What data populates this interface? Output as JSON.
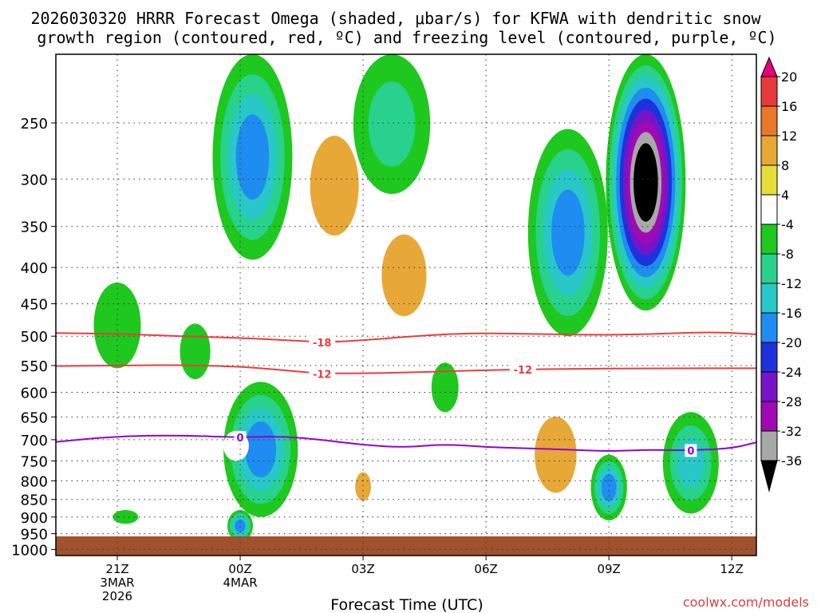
{
  "title_line1": "2026030320 HRRR Forecast Omega (shaded, μbar/s) for KFWA with dendritic snow",
  "title_line2": "growth region (contoured, red, ºC) and freezing level (contoured, purple, ºC)",
  "xlabel": "Forecast Time (UTC)",
  "credit": "coolwx.com/models",
  "colors": {
    "background": "#ffffff",
    "ground": "#a0522d",
    "dgz_line": "#ee3b3b",
    "freezing_line": "#9400d3",
    "grid": "#333333",
    "credit": "#e03c3c"
  },
  "chart_data": {
    "type": "contour",
    "title": "2026030320 HRRR Forecast Omega (shaded, μbar/s) for KFWA with dendritic snow growth region (contoured, red, ºC) and freezing level (contoured, purple, ºC)",
    "xlabel": "Forecast Time (UTC)",
    "ylabel": "",
    "x_range_hours": [
      -2.5,
      14.6
    ],
    "y_axis": "pressure_hPa",
    "y_range": [
      1020,
      200
    ],
    "y_ticks": [
      250,
      300,
      350,
      400,
      450,
      500,
      550,
      600,
      650,
      700,
      750,
      800,
      850,
      900,
      950,
      1000
    ],
    "x_ticks": [
      {
        "hour": -1,
        "lines": [
          "21Z",
          "3MAR",
          "2026"
        ]
      },
      {
        "hour": 2,
        "lines": [
          "00Z",
          "4MAR"
        ]
      },
      {
        "hour": 5,
        "lines": [
          "03Z"
        ]
      },
      {
        "hour": 8,
        "lines": [
          "06Z"
        ]
      },
      {
        "hour": 11,
        "lines": [
          "09Z"
        ]
      },
      {
        "hour": 14,
        "lines": [
          "12Z"
        ]
      }
    ],
    "colorbar": {
      "units": "μbar/s",
      "labels": [
        "20",
        "16",
        "12",
        "8",
        "4",
        "-4",
        "-8",
        "-12",
        "-16",
        "-20",
        "-24",
        "-28",
        "-32",
        "-36"
      ],
      "levels": [
        {
          "min": 20,
          "max": null,
          "color": "#e8007a"
        },
        {
          "min": 16,
          "max": 20,
          "color": "#e83a3a"
        },
        {
          "min": 12,
          "max": 16,
          "color": "#e8782a"
        },
        {
          "min": 8,
          "max": 12,
          "color": "#e8a838"
        },
        {
          "min": 4,
          "max": 8,
          "color": "#e8dc3a"
        },
        {
          "min": -4,
          "max": 4,
          "color": "#ffffff"
        },
        {
          "min": -8,
          "max": -4,
          "color": "#1ec81e"
        },
        {
          "min": -12,
          "max": -8,
          "color": "#28d28c"
        },
        {
          "min": -16,
          "max": -12,
          "color": "#28c8c8"
        },
        {
          "min": -20,
          "max": -16,
          "color": "#1e8cf0"
        },
        {
          "min": -24,
          "max": -20,
          "color": "#1e32dc"
        },
        {
          "min": -28,
          "max": -24,
          "color": "#7814c8"
        },
        {
          "min": -32,
          "max": -28,
          "color": "#a00ab4"
        },
        {
          "min": -36,
          "max": -32,
          "color": "#a8a8a8"
        },
        {
          "min": null,
          "max": -36,
          "color": "#000000"
        }
      ]
    },
    "omega_features": [
      {
        "hour": 0.2,
        "p_top": 255,
        "p_bot": 345,
        "levels": [
          4
        ]
      },
      {
        "hour": -1.0,
        "p_top": 420,
        "p_bot": 555,
        "levels": [
          -4
        ]
      },
      {
        "hour": 0.9,
        "p_top": 480,
        "p_bot": 575,
        "levels": [
          -4
        ]
      },
      {
        "hour": 2.3,
        "p_top": 200,
        "p_bot": 390,
        "levels": [
          -4,
          -8,
          -12,
          -16
        ]
      },
      {
        "hour": 2.5,
        "p_top": 430,
        "p_bot": 540,
        "levels": [
          4
        ]
      },
      {
        "hour": 4.3,
        "p_top": 235,
        "p_bot": 400,
        "levels": [
          4,
          8
        ]
      },
      {
        "hour": 5.7,
        "p_top": 200,
        "p_bot": 315,
        "levels": [
          -4,
          -8
        ]
      },
      {
        "hour": 6.0,
        "p_top": 330,
        "p_bot": 510,
        "levels": [
          4,
          8
        ]
      },
      {
        "hour": 8.2,
        "p_top": 260,
        "p_bot": 310,
        "levels": [
          4
        ]
      },
      {
        "hour": 10.0,
        "p_top": 255,
        "p_bot": 500,
        "levels": [
          -4,
          -8,
          -12,
          -16
        ]
      },
      {
        "hour": 11.9,
        "p_top": 200,
        "p_bot": 460,
        "levels": [
          -4,
          -8,
          -12,
          -16,
          -20,
          -24,
          -28,
          -32,
          -36
        ]
      },
      {
        "hour": 12.9,
        "p_top": 445,
        "p_bot": 525,
        "levels": [
          4
        ]
      },
      {
        "hour": 2.5,
        "p_top": 580,
        "p_bot": 900,
        "levels": [
          -4,
          -8,
          -12,
          -16
        ]
      },
      {
        "hour": 2.0,
        "p_top": 880,
        "p_bot": 975,
        "levels": [
          -4,
          -8,
          -12,
          -16
        ]
      },
      {
        "hour": -1.0,
        "p_top": 640,
        "p_bot": 720,
        "levels": [
          4
        ]
      },
      {
        "hour": 1.9,
        "p_top": 680,
        "p_bot": 750,
        "levels": [
          4
        ]
      },
      {
        "hour": 5.0,
        "p_top": 755,
        "p_bot": 880,
        "levels": [
          4,
          8
        ]
      },
      {
        "hour": 4.9,
        "p_top": 540,
        "p_bot": 590,
        "levels": [
          4
        ]
      },
      {
        "hour": 7.0,
        "p_top": 545,
        "p_bot": 640,
        "levels": [
          -4
        ]
      },
      {
        "hour": 7.7,
        "p_top": 850,
        "p_bot": 955,
        "levels": [
          4
        ]
      },
      {
        "hour": 9.7,
        "p_top": 600,
        "p_bot": 900,
        "levels": [
          4,
          8
        ]
      },
      {
        "hour": 11.0,
        "p_top": 735,
        "p_bot": 910,
        "levels": [
          -4,
          -8,
          -12,
          -16
        ]
      },
      {
        "hour": 12.0,
        "p_top": 550,
        "p_bot": 760,
        "levels": [
          4
        ]
      },
      {
        "hour": 13.0,
        "p_top": 640,
        "p_bot": 890,
        "levels": [
          -4,
          -8,
          -12
        ]
      },
      {
        "hour": -0.8,
        "p_top": 880,
        "p_bot": 920,
        "levels": [
          -4
        ]
      },
      {
        "hour": 4.8,
        "p_top": 905,
        "p_bot": 960,
        "levels": [
          4
        ]
      }
    ],
    "contours": [
      {
        "name": "dgz_-18",
        "value": -18,
        "label": "-18",
        "label_hour": 4.0,
        "hours": [
          -2.5,
          -1.0,
          0.5,
          2.0,
          3.0,
          4.0,
          5.0,
          6.0,
          7.5,
          9.0,
          10.5,
          12.0,
          13.5,
          14.6
        ],
        "p": [
          495,
          496,
          500,
          503,
          506,
          510,
          507,
          501,
          495,
          496,
          498,
          497,
          493,
          497
        ]
      },
      {
        "name": "dgz_-12",
        "value": -12,
        "label": "-12",
        "label_hour": 4.0,
        "label2_hour": 8.9,
        "hours": [
          -2.5,
          -1.0,
          0.5,
          2.0,
          3.0,
          4.0,
          6.0,
          8.0,
          10.0,
          12.0,
          14.6
        ],
        "p": [
          551,
          550,
          549,
          552,
          558,
          565,
          563,
          558,
          556,
          555,
          555
        ]
      },
      {
        "name": "freezing_0",
        "value": 0,
        "label": "0",
        "label_hour": 2.0,
        "label2_hour": 13.0,
        "hours": [
          -2.5,
          -1.0,
          0.5,
          2.0,
          3.0,
          4.0,
          5.0,
          6.0,
          7.0,
          8.0,
          9.0,
          10.0,
          11.0,
          12.0,
          13.0,
          14.0,
          14.6
        ],
        "p": [
          705,
          692,
          690,
          695,
          692,
          700,
          712,
          718,
          710,
          717,
          720,
          723,
          727,
          723,
          725,
          720,
          706
        ]
      }
    ]
  }
}
